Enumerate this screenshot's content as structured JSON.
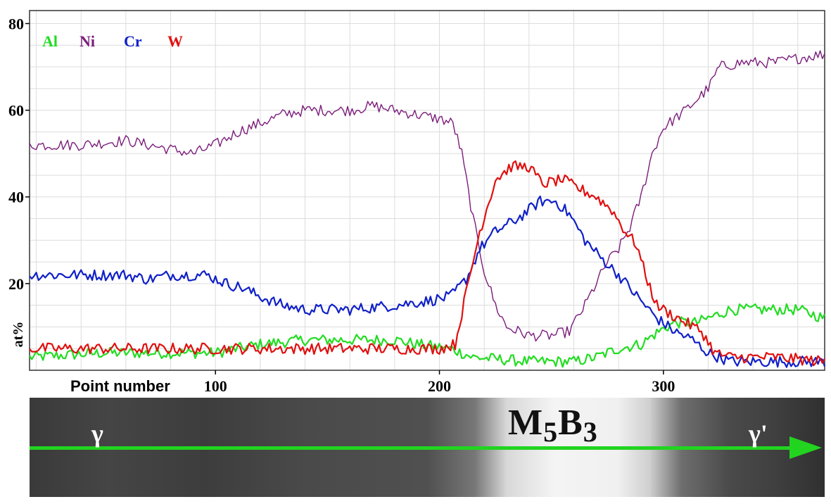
{
  "chart_data": {
    "type": "line",
    "xlabel": "Point number",
    "ylabel": "at%",
    "xlim": [
      17,
      372
    ],
    "ylim": [
      0,
      83
    ],
    "xticks": [
      100,
      200,
      300
    ],
    "yticks": [
      20,
      40,
      60,
      80
    ],
    "grid": true,
    "legend_position": "top-left",
    "series": [
      {
        "name": "Al",
        "color": "#22dd22",
        "points": [
          [
            17,
            3
          ],
          [
            50,
            4
          ],
          [
            100,
            4
          ],
          [
            120,
            6
          ],
          [
            140,
            7
          ],
          [
            160,
            7
          ],
          [
            180,
            7
          ],
          [
            190,
            6
          ],
          [
            205,
            5
          ],
          [
            215,
            3
          ],
          [
            240,
            2
          ],
          [
            260,
            2
          ],
          [
            270,
            3
          ],
          [
            280,
            5
          ],
          [
            290,
            6
          ],
          [
            298,
            9
          ],
          [
            305,
            11
          ],
          [
            315,
            11
          ],
          [
            325,
            13
          ],
          [
            330,
            14
          ],
          [
            340,
            14
          ],
          [
            350,
            14
          ],
          [
            360,
            14
          ],
          [
            372,
            12
          ]
        ]
      },
      {
        "name": "Ni",
        "color": "#7b1c7b",
        "points": [
          [
            17,
            52
          ],
          [
            40,
            52
          ],
          [
            60,
            53
          ],
          [
            80,
            51
          ],
          [
            90,
            50
          ],
          [
            100,
            52
          ],
          [
            110,
            55
          ],
          [
            120,
            57
          ],
          [
            130,
            59
          ],
          [
            140,
            60
          ],
          [
            150,
            60
          ],
          [
            160,
            60
          ],
          [
            170,
            61
          ],
          [
            180,
            60
          ],
          [
            190,
            59
          ],
          [
            200,
            58
          ],
          [
            206,
            57
          ],
          [
            210,
            50
          ],
          [
            215,
            35
          ],
          [
            220,
            23
          ],
          [
            225,
            15
          ],
          [
            230,
            10
          ],
          [
            240,
            8
          ],
          [
            250,
            8
          ],
          [
            258,
            9
          ],
          [
            265,
            15
          ],
          [
            270,
            20
          ],
          [
            275,
            25
          ],
          [
            280,
            28
          ],
          [
            285,
            33
          ],
          [
            290,
            40
          ],
          [
            295,
            50
          ],
          [
            300,
            56
          ],
          [
            310,
            60
          ],
          [
            320,
            65
          ],
          [
            325,
            70
          ],
          [
            335,
            71
          ],
          [
            350,
            71
          ],
          [
            360,
            72
          ],
          [
            372,
            73
          ]
        ]
      },
      {
        "name": "Cr",
        "color": "#1020c8",
        "points": [
          [
            17,
            22
          ],
          [
            40,
            22
          ],
          [
            60,
            22
          ],
          [
            70,
            21
          ],
          [
            80,
            22
          ],
          [
            90,
            22
          ],
          [
            96,
            22
          ],
          [
            105,
            20
          ],
          [
            112,
            19
          ],
          [
            120,
            17
          ],
          [
            130,
            15
          ],
          [
            140,
            14
          ],
          [
            160,
            14
          ],
          [
            180,
            15
          ],
          [
            195,
            16
          ],
          [
            205,
            17
          ],
          [
            212,
            21
          ],
          [
            218,
            28
          ],
          [
            225,
            32
          ],
          [
            235,
            35
          ],
          [
            245,
            39
          ],
          [
            252,
            39
          ],
          [
            258,
            36
          ],
          [
            265,
            30
          ],
          [
            272,
            26
          ],
          [
            280,
            22
          ],
          [
            290,
            16
          ],
          [
            297,
            12
          ],
          [
            305,
            9
          ],
          [
            313,
            7
          ],
          [
            320,
            4
          ],
          [
            330,
            2
          ],
          [
            345,
            2
          ],
          [
            360,
            2
          ],
          [
            372,
            2
          ]
        ]
      },
      {
        "name": "W",
        "color": "#e01010",
        "points": [
          [
            17,
            5
          ],
          [
            50,
            5
          ],
          [
            80,
            5
          ],
          [
            100,
            5
          ],
          [
            120,
            5
          ],
          [
            150,
            5
          ],
          [
            180,
            5
          ],
          [
            200,
            5
          ],
          [
            207,
            6
          ],
          [
            212,
            18
          ],
          [
            218,
            32
          ],
          [
            225,
            44
          ],
          [
            232,
            47
          ],
          [
            240,
            47
          ],
          [
            246,
            43
          ],
          [
            255,
            44
          ],
          [
            262,
            42
          ],
          [
            270,
            40
          ],
          [
            277,
            37
          ],
          [
            283,
            32
          ],
          [
            288,
            29
          ],
          [
            292,
            22
          ],
          [
            297,
            15
          ],
          [
            303,
            13
          ],
          [
            310,
            11
          ],
          [
            317,
            9
          ],
          [
            323,
            4
          ],
          [
            330,
            3
          ],
          [
            350,
            3
          ],
          [
            372,
            2
          ]
        ]
      }
    ]
  },
  "micrograph": {
    "labels": {
      "left_phase": "γ",
      "center_phase": "M",
      "center_sub1": "5",
      "center_mid": "B",
      "center_sub2": "3",
      "right_phase": "γ'"
    }
  }
}
